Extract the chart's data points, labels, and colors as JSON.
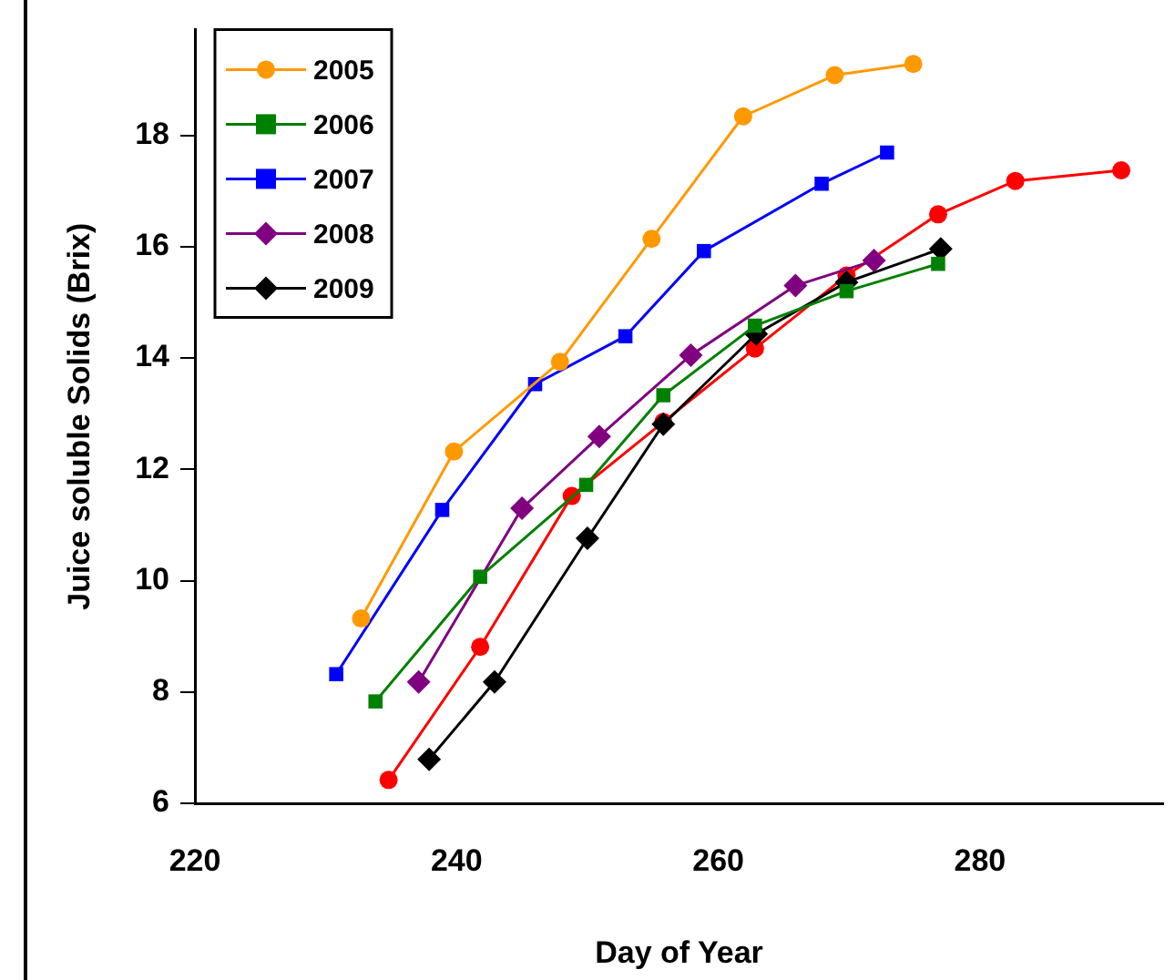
{
  "chart_data": {
    "type": "line",
    "xlabel": "Day of Year",
    "ylabel": "Juice soluble Solids (Brix)",
    "xlim": [
      220,
      294
    ],
    "xticks": [
      220,
      240,
      260,
      280
    ],
    "ylim": [
      6,
      19.9
    ],
    "yticks": [
      6,
      8,
      10,
      12,
      14,
      16,
      18
    ],
    "grid": false,
    "legend": "top left",
    "series": [
      {
        "name": "2005",
        "color": "#ff9900",
        "marker": "circle",
        "x": [
          232.7,
          239.8,
          247.9,
          254.9,
          261.9,
          268.9,
          274.9
        ],
        "values": [
          9.32,
          12.32,
          13.93,
          16.14,
          18.34,
          19.08,
          19.28
        ]
      },
      {
        "name": "2006",
        "color": "#008000",
        "marker": "square",
        "x": [
          233.8,
          241.8,
          249.9,
          255.8,
          262.8,
          269.8,
          276.8
        ],
        "values": [
          7.83,
          10.07,
          11.72,
          13.33,
          14.58,
          15.2,
          15.69
        ]
      },
      {
        "name": "2007",
        "color": "#0000ff",
        "marker": "square",
        "x": [
          230.8,
          238.9,
          246.0,
          252.9,
          258.9,
          267.9,
          272.9
        ],
        "values": [
          8.32,
          11.27,
          13.53,
          14.39,
          15.92,
          17.13,
          17.69
        ]
      },
      {
        "name": "2008",
        "color": "#800080",
        "marker": "diamond",
        "x": [
          237.1,
          245.0,
          250.9,
          257.9,
          265.9,
          271.9
        ],
        "values": [
          8.18,
          11.3,
          12.59,
          14.05,
          15.3,
          15.75
        ]
      },
      {
        "name": "2009",
        "color": "#000000",
        "marker": "diamond",
        "x": [
          237.9,
          242.9,
          250.0,
          255.8,
          262.9,
          269.8,
          277.0
        ],
        "values": [
          6.79,
          8.18,
          10.76,
          12.81,
          14.43,
          15.36,
          15.96
        ]
      },
      {
        "color": "#ff0000",
        "marker": "circle",
        "x": [
          234.8,
          241.8,
          248.8,
          255.8,
          262.8,
          269.8,
          276.8,
          282.7,
          290.8
        ],
        "values": [
          6.42,
          8.81,
          11.52,
          12.85,
          14.17,
          15.48,
          16.58,
          17.18,
          17.37
        ]
      }
    ]
  }
}
